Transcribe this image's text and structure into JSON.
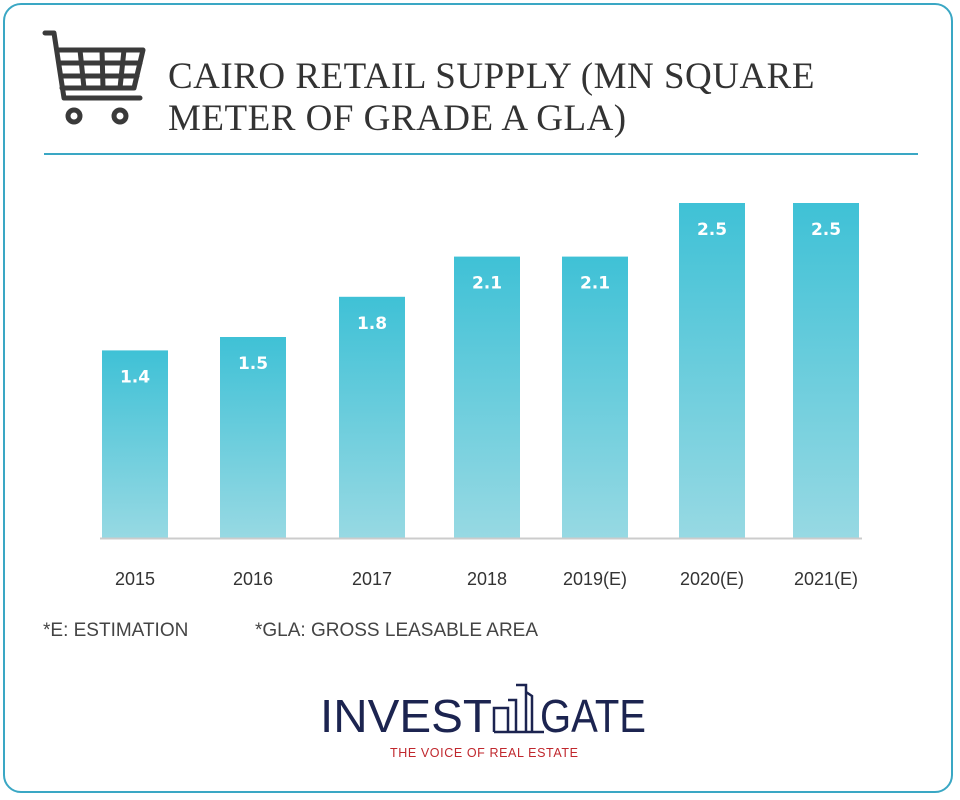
{
  "header": {
    "title_line1": "CAIRO RETAIL SUPPLY (MN SQUARE",
    "title_line2": "METER OF GRADE A GLA)",
    "icon": "shopping-cart-icon"
  },
  "notes": {
    "estimation": "*E: ESTIMATION",
    "gla": "*GLA: GROSS LEASABLE AREA"
  },
  "logo": {
    "brand": "INVESTGATE",
    "tagline": "THE VOICE OF REAL ESTATE",
    "brand_color": "#1c2450",
    "tagline_color": "#c0272d"
  },
  "chart_data": {
    "type": "bar",
    "title": "CAIRO RETAIL SUPPLY (MN SQUARE METER OF GRADE A GLA)",
    "categories": [
      "2015",
      "2016",
      "2017",
      "2018",
      "2019(E)",
      "2020(E)",
      "2021(E)"
    ],
    "values": [
      1.4,
      1.5,
      1.8,
      2.1,
      2.1,
      2.5,
      2.5
    ],
    "data_labels": [
      "1.4",
      "1.5",
      "1.8",
      "2.1",
      "2.1",
      "2.5",
      "2.5"
    ],
    "ylim": [
      0,
      2.5
    ],
    "grid": false,
    "colors": {
      "bar_top": "#3fc1d6",
      "bar_bottom": "#97d9e3",
      "label": "#ffffff",
      "axis": "#cccccc"
    }
  }
}
